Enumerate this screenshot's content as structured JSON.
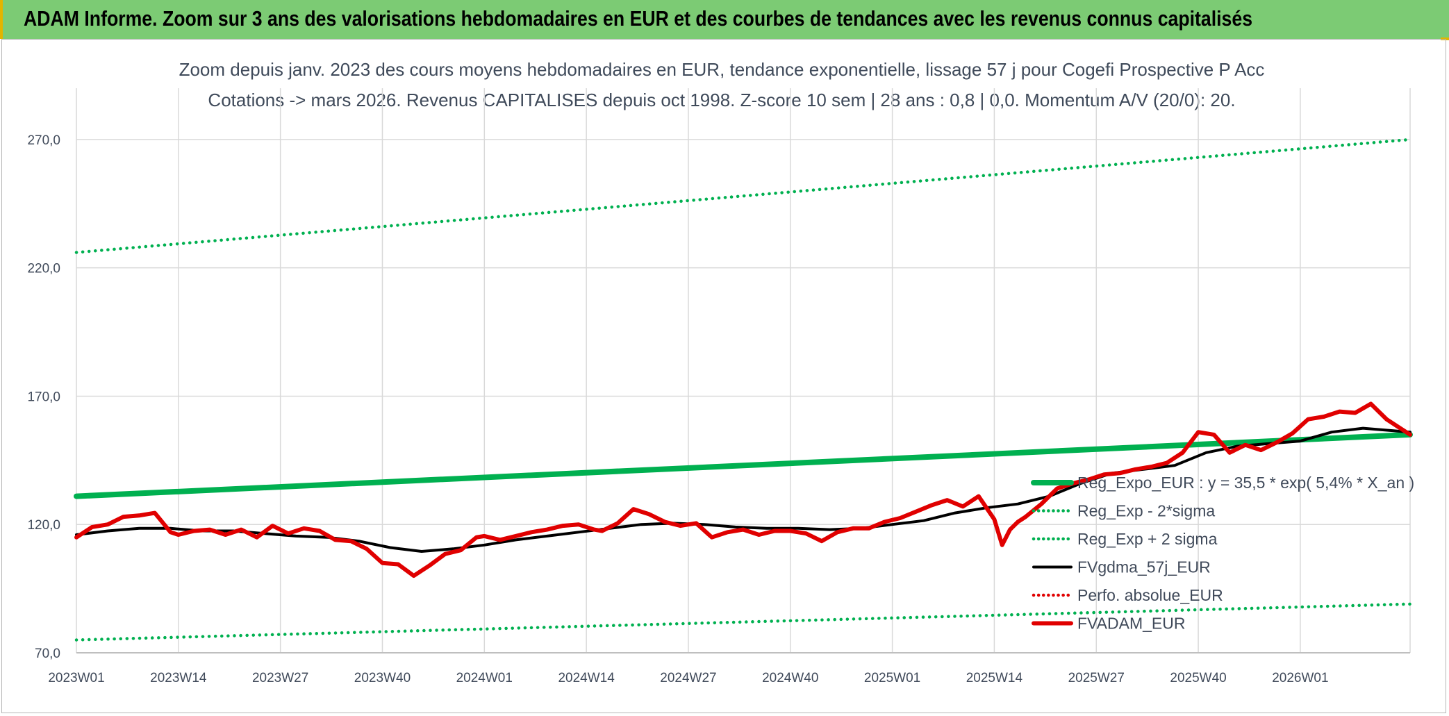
{
  "header": {
    "title": "ADAM Informe. Zoom sur 3 ans des valorisations hebdomadaires en EUR et des courbes de tendances avec les revenus connus capitalisés"
  },
  "colors": {
    "banner": "#7ccb74",
    "regression": "#00b050",
    "sigma": "#00b050",
    "smooth": "#000000",
    "perfo": "#e00000",
    "price": "#e00000",
    "grid": "#d9d9d9"
  },
  "chart_data": {
    "type": "line",
    "title": "Zoom depuis janv. 2023 des cours moyens hebdomadaires en EUR, tendance exponentielle, lissage 57 j pour Cogefi Prospective P Acc",
    "subtitle": "Cotations -> mars 2026. Revenus CAPITALISES depuis oct 1998. Z-score 10 sem | 28 ans : 0,8 | 0,0. Momentum A/V (20/0): 20.",
    "xlabel": "",
    "ylabel": "",
    "ylim": [
      70,
      290
    ],
    "y_ticks": [
      "70,0",
      "120,0",
      "170,0",
      "220,0",
      "270,0"
    ],
    "y_tick_values": [
      70,
      120,
      170,
      220,
      270
    ],
    "x_ticks": [
      "2023W01",
      "2023W14",
      "2023W27",
      "2023W40",
      "2024W01",
      "2024W14",
      "2024W27",
      "2024W40",
      "2025W01",
      "2025W14",
      "2025W27",
      "2025W40",
      "2026W01"
    ],
    "x_tick_weeks": [
      0,
      13,
      26,
      39,
      52,
      65,
      78,
      91,
      104,
      117,
      130,
      143,
      156
    ],
    "xlim_weeks": [
      0,
      170
    ],
    "grid": true,
    "legend_position": "right",
    "series": [
      {
        "name": "Reg_Expo_EUR : y = 35,5 * exp( 5,4% *  X_an )",
        "style": "solid-thick",
        "color": "#00b050",
        "x_weeks": [
          0,
          170
        ],
        "values": [
          131,
          155
        ]
      },
      {
        "name": "Reg_Exp - 2*sigma",
        "style": "dotted",
        "color": "#00b050",
        "x_weeks": [
          0,
          170
        ],
        "values": [
          75,
          89
        ]
      },
      {
        "name": "Reg_Exp + 2 sigma",
        "style": "dotted",
        "color": "#00b050",
        "x_weeks": [
          0,
          170
        ],
        "values": [
          226,
          270
        ]
      },
      {
        "name": "FVgdma_57j_EUR",
        "style": "solid",
        "color": "#000000",
        "x_weeks": [
          0,
          4,
          8,
          12,
          16,
          20,
          24,
          28,
          32,
          36,
          40,
          44,
          48,
          52,
          56,
          60,
          64,
          68,
          72,
          76,
          80,
          84,
          88,
          92,
          96,
          100,
          104,
          108,
          112,
          116,
          120,
          124,
          128,
          132,
          136,
          140,
          144,
          148,
          152,
          156,
          160,
          164,
          166,
          170
        ],
        "values": [
          116,
          117.5,
          118.5,
          118.5,
          117.5,
          117.5,
          116.5,
          115.5,
          115,
          113.5,
          111,
          109.5,
          110.5,
          112,
          114,
          115.5,
          117,
          118.5,
          120,
          120.5,
          120,
          119,
          118.5,
          118.5,
          118,
          118.5,
          120,
          121.5,
          124.5,
          126.5,
          128,
          131,
          136,
          140,
          141.5,
          143,
          148,
          150.5,
          151.5,
          152.5,
          156,
          157.5,
          157,
          156
        ]
      },
      {
        "name": "Perfo. absolue_EUR",
        "style": "dotted",
        "color": "#e00000",
        "x_weeks": [],
        "values": []
      },
      {
        "name": "FVADAM_EUR",
        "style": "solid-thick",
        "color": "#e00000",
        "x_weeks": [
          0,
          2,
          4,
          6,
          8,
          10,
          12,
          13,
          15,
          17,
          19,
          21,
          23,
          25,
          27,
          29,
          31,
          33,
          35,
          37,
          39,
          41,
          43,
          45,
          47,
          49,
          51,
          52,
          54,
          56,
          58,
          60,
          62,
          64,
          66,
          67,
          69,
          71,
          73,
          75,
          77,
          79,
          81,
          83,
          85,
          87,
          89,
          91,
          93,
          95,
          97,
          99,
          101,
          103,
          105,
          107,
          109,
          111,
          113,
          115,
          117,
          118,
          119,
          120,
          121,
          123,
          125,
          127,
          129,
          131,
          133,
          135,
          137,
          139,
          141,
          143,
          145,
          147,
          149,
          151,
          153,
          155,
          157,
          159,
          161,
          163,
          165,
          167,
          169,
          170
        ],
        "values": [
          115,
          119,
          120,
          123,
          123.5,
          124.5,
          117,
          116,
          117.5,
          118,
          116,
          118,
          115,
          119.5,
          116.5,
          118.5,
          117.5,
          114,
          113.5,
          110.5,
          105,
          104.5,
          100,
          104,
          108.5,
          110,
          115,
          115.5,
          114,
          115.5,
          117,
          118,
          119.5,
          120,
          118,
          117.5,
          120.5,
          126,
          124,
          121,
          119.5,
          120.5,
          115,
          117,
          118,
          116,
          117.5,
          117.5,
          116.5,
          113.5,
          117,
          118.5,
          118.5,
          121,
          122.5,
          125,
          127.5,
          129.5,
          127,
          131,
          122,
          112,
          118,
          121,
          123,
          128,
          134,
          136,
          137.5,
          139.5,
          140,
          141.5,
          142.5,
          144,
          148,
          156,
          155,
          148,
          151,
          149,
          152,
          155.5,
          161,
          162,
          164,
          163.5,
          167,
          161,
          157,
          155
        ]
      }
    ]
  }
}
